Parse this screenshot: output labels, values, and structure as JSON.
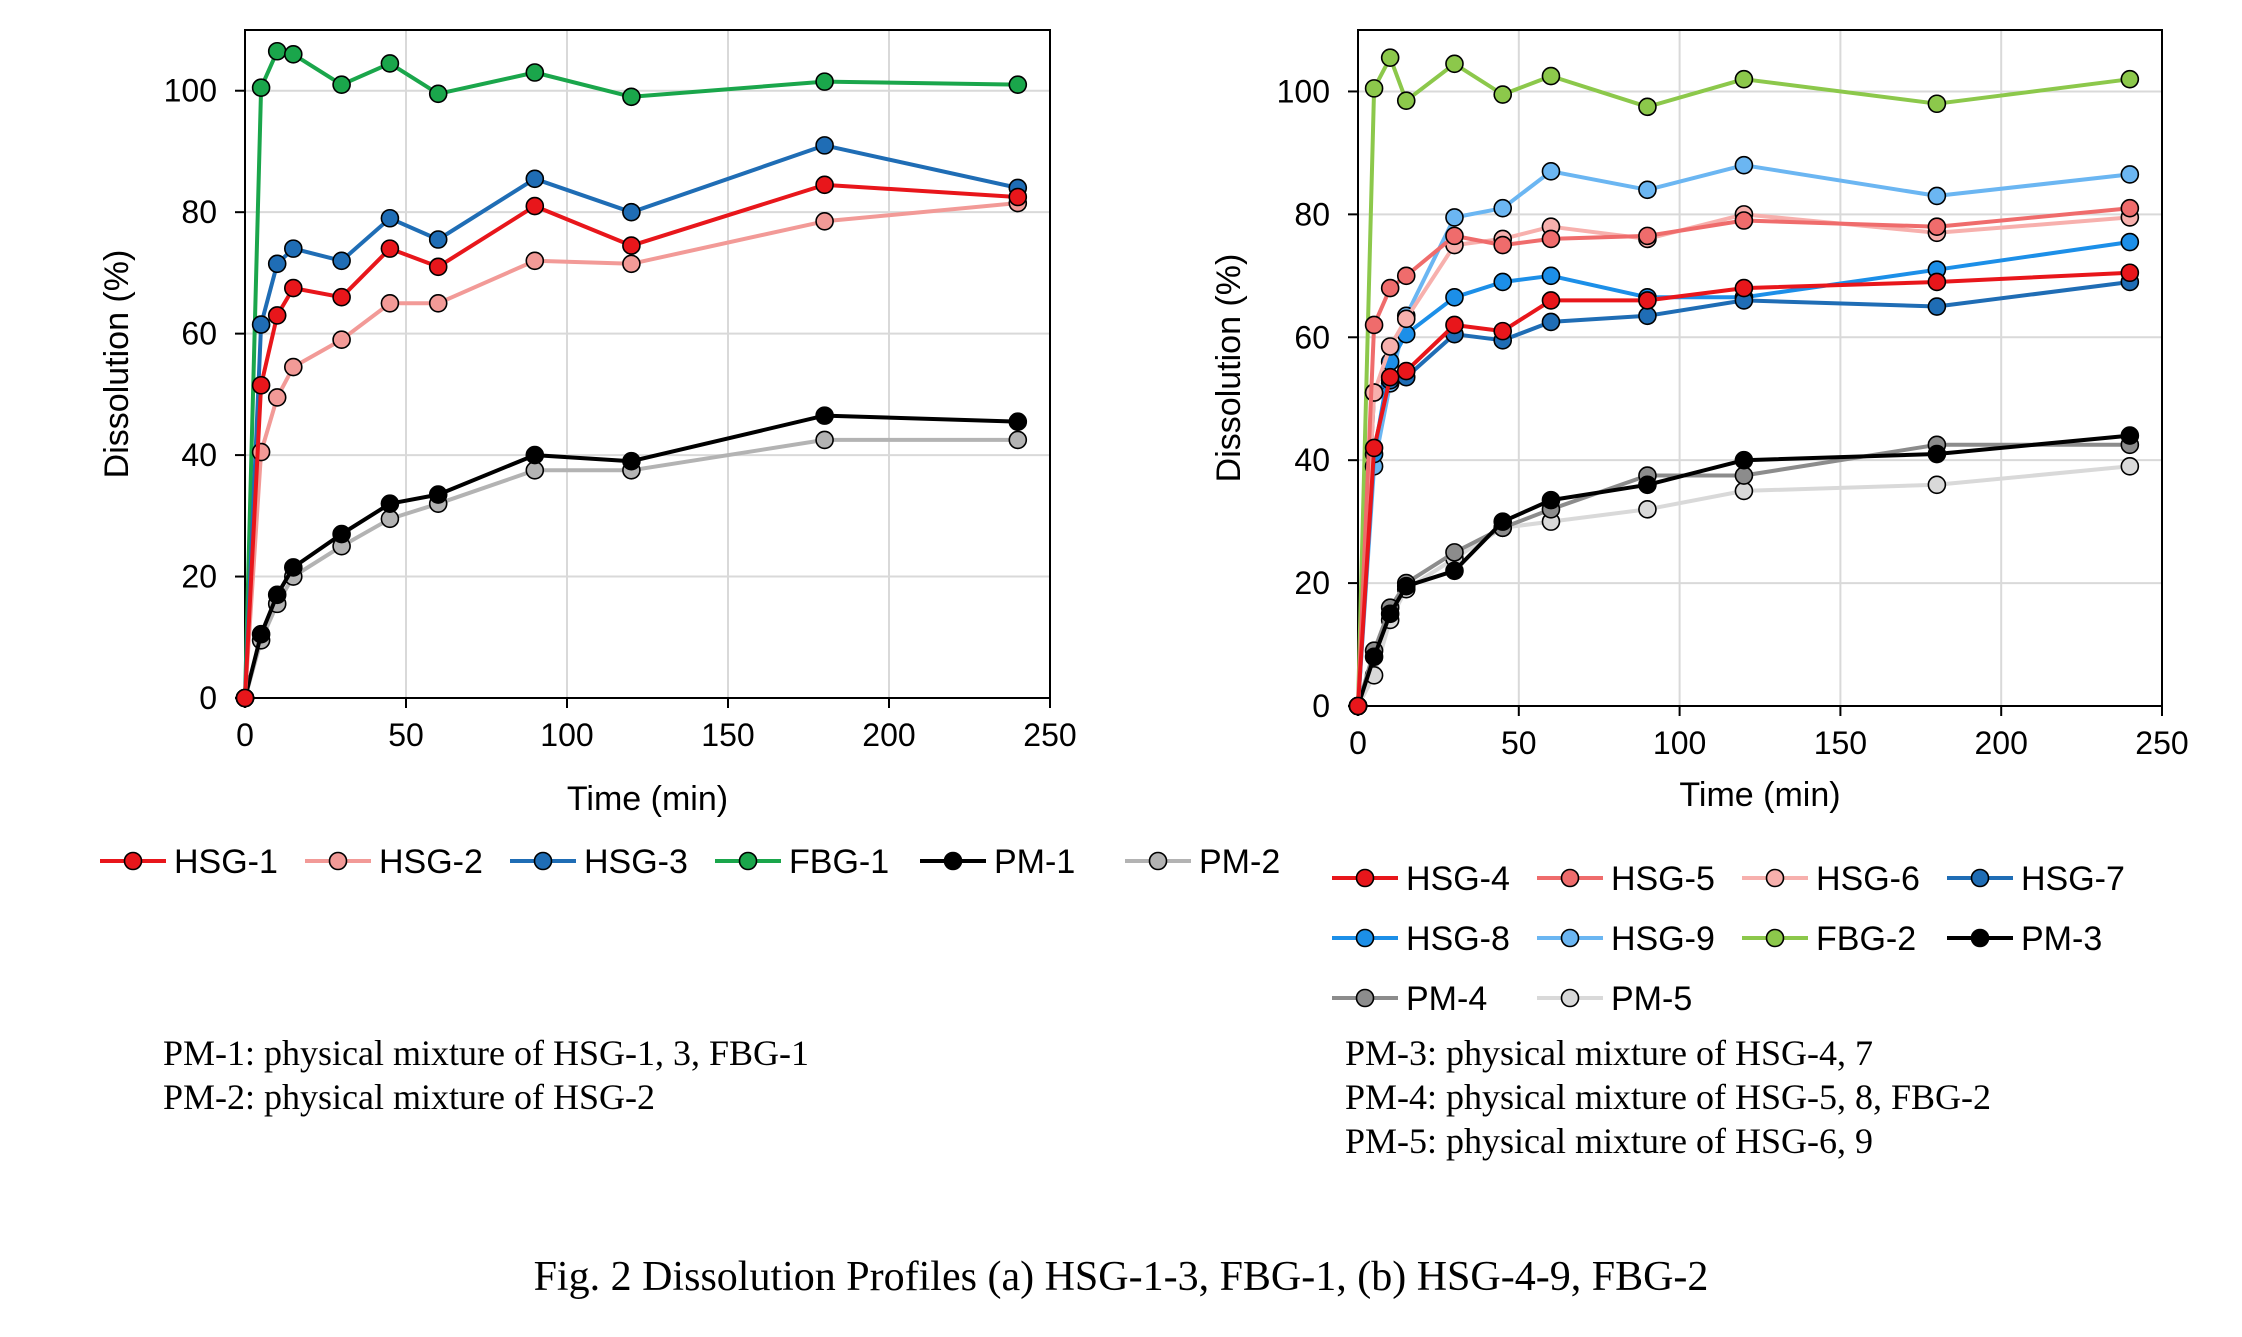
{
  "chart_data": [
    {
      "type": "line",
      "xlabel": "Time (min)",
      "ylabel": "Dissolution (%)",
      "xlim": [
        0,
        250
      ],
      "ylim": [
        0,
        110
      ],
      "xticks": [
        0,
        50,
        100,
        150,
        200,
        250
      ],
      "yticks": [
        0,
        20,
        40,
        60,
        80,
        100
      ],
      "grid": true,
      "legend_position": "bottom",
      "series": [
        {
          "name": "HSG-1",
          "color": "#e8161b",
          "x": [
            0,
            5,
            10,
            15,
            30,
            45,
            60,
            90,
            120,
            180,
            240
          ],
          "values": [
            0,
            51.5,
            63,
            67.5,
            66,
            74,
            71,
            81,
            74.5,
            84.5,
            82.5
          ]
        },
        {
          "name": "HSG-2",
          "color": "#f29a97",
          "x": [
            0,
            5,
            10,
            15,
            30,
            45,
            60,
            90,
            120,
            180,
            240
          ],
          "values": [
            0,
            40.5,
            49.5,
            54.5,
            59,
            65,
            65,
            72,
            71.5,
            78.5,
            81.5
          ]
        },
        {
          "name": "HSG-3",
          "color": "#1f6db5",
          "x": [
            0,
            5,
            10,
            15,
            30,
            45,
            60,
            90,
            120,
            180,
            240
          ],
          "values": [
            0,
            61.5,
            71.5,
            74,
            72,
            79,
            75.5,
            85.5,
            80,
            91,
            84
          ]
        },
        {
          "name": "FBG-1",
          "color": "#1aa64b",
          "x": [
            0,
            5,
            10,
            15,
            30,
            45,
            60,
            90,
            120,
            180,
            240
          ],
          "values": [
            0,
            100.5,
            106.5,
            106,
            101,
            104.5,
            99.5,
            103,
            99,
            101.5,
            101
          ]
        },
        {
          "name": "PM-1",
          "color": "#000000",
          "x": [
            0,
            5,
            10,
            15,
            30,
            45,
            60,
            90,
            120,
            180,
            240
          ],
          "values": [
            0,
            10.5,
            17,
            21.5,
            27,
            32,
            33.5,
            40,
            39,
            46.5,
            45.5
          ]
        },
        {
          "name": "PM-2",
          "color": "#b3b3b3",
          "x": [
            0,
            5,
            10,
            15,
            30,
            45,
            60,
            90,
            120,
            180,
            240
          ],
          "values": [
            0,
            9.5,
            15.5,
            20,
            25,
            29.5,
            32,
            37.5,
            37.5,
            42.5,
            42.5
          ]
        }
      ],
      "notes": [
        "PM-1: physical mixture of HSG-1, 3, FBG-1",
        "PM-2: physical mixture of HSG-2"
      ]
    },
    {
      "type": "line",
      "xlabel": "Time (min)",
      "ylabel": "Dissolution (%)",
      "xlim": [
        0,
        250
      ],
      "ylim": [
        0,
        110
      ],
      "xticks": [
        0,
        50,
        100,
        150,
        200,
        250
      ],
      "yticks": [
        0,
        20,
        40,
        60,
        80,
        100
      ],
      "grid": true,
      "legend_position": "bottom",
      "series": [
        {
          "name": "HSG-4",
          "color": "#e8161b",
          "x": [
            0,
            5,
            10,
            15,
            30,
            45,
            60,
            90,
            120,
            180,
            240
          ],
          "values": [
            0,
            42,
            53.5,
            54.5,
            62,
            61,
            66,
            66,
            68,
            69,
            70.5
          ]
        },
        {
          "name": "HSG-5",
          "color": "#ef6c6c",
          "x": [
            0,
            5,
            10,
            15,
            30,
            45,
            60,
            90,
            120,
            180,
            240
          ],
          "values": [
            0,
            62,
            68,
            70,
            76.5,
            75,
            76,
            76.5,
            79,
            78,
            81
          ]
        },
        {
          "name": "HSG-6",
          "color": "#f7b0ad",
          "x": [
            0,
            5,
            10,
            15,
            30,
            45,
            60,
            90,
            120,
            180,
            240
          ],
          "values": [
            0,
            51,
            58.5,
            63,
            75,
            76,
            78,
            76,
            80,
            77,
            79.5
          ]
        },
        {
          "name": "HSG-7",
          "color": "#1f6db5",
          "x": [
            0,
            5,
            10,
            15,
            30,
            45,
            60,
            90,
            120,
            180,
            240
          ],
          "values": [
            0,
            51,
            53,
            53.5,
            60.5,
            59.5,
            62.5,
            63.5,
            66,
            65,
            69
          ]
        },
        {
          "name": "HSG-8",
          "color": "#1c8fe8",
          "x": [
            0,
            5,
            10,
            15,
            30,
            45,
            60,
            90,
            120,
            180,
            240
          ],
          "values": [
            0,
            41,
            56,
            60.5,
            66.5,
            69,
            70,
            66.5,
            66.5,
            71,
            75.5
          ]
        },
        {
          "name": "HSG-9",
          "color": "#6bb6f2",
          "x": [
            0,
            5,
            10,
            15,
            30,
            45,
            60,
            90,
            120,
            180,
            240
          ],
          "values": [
            0,
            39,
            52.5,
            63.5,
            79.5,
            81,
            87,
            84,
            88,
            83,
            86.5
          ]
        },
        {
          "name": "FBG-2",
          "color": "#8cc84b",
          "x": [
            0,
            5,
            10,
            15,
            30,
            45,
            60,
            90,
            120,
            180,
            240
          ],
          "values": [
            0,
            100.5,
            105.5,
            98.5,
            104.5,
            99.5,
            102.5,
            97.5,
            102,
            98,
            102
          ]
        },
        {
          "name": "PM-3",
          "color": "#000000",
          "x": [
            0,
            5,
            10,
            15,
            30,
            45,
            60,
            90,
            120,
            180,
            240
          ],
          "values": [
            0,
            8,
            15,
            19.5,
            22,
            30,
            33.5,
            36,
            40,
            41,
            44
          ]
        },
        {
          "name": "PM-4",
          "color": "#8c8c8c",
          "x": [
            0,
            5,
            10,
            15,
            30,
            45,
            60,
            90,
            120,
            180,
            240
          ],
          "values": [
            0,
            9,
            16,
            20,
            25,
            29,
            32,
            37.5,
            37.5,
            42.5,
            42.5
          ]
        },
        {
          "name": "PM-5",
          "color": "#d9d9d9",
          "x": [
            0,
            5,
            10,
            15,
            30,
            45,
            60,
            90,
            120,
            180,
            240
          ],
          "values": [
            0,
            5,
            14,
            19,
            24,
            29,
            30,
            32,
            35,
            36,
            39
          ]
        }
      ],
      "notes": [
        "PM-3: physical mixture of HSG-4, 7",
        "PM-4: physical mixture of HSG-5, 8, FBG-2",
        "PM-5: physical mixture of HSG-6, 9"
      ]
    }
  ],
  "caption": "Fig. 2 Dissolution Profiles (a) HSG-1-3, FBG-1, (b) HSG-4-9, FBG-2"
}
